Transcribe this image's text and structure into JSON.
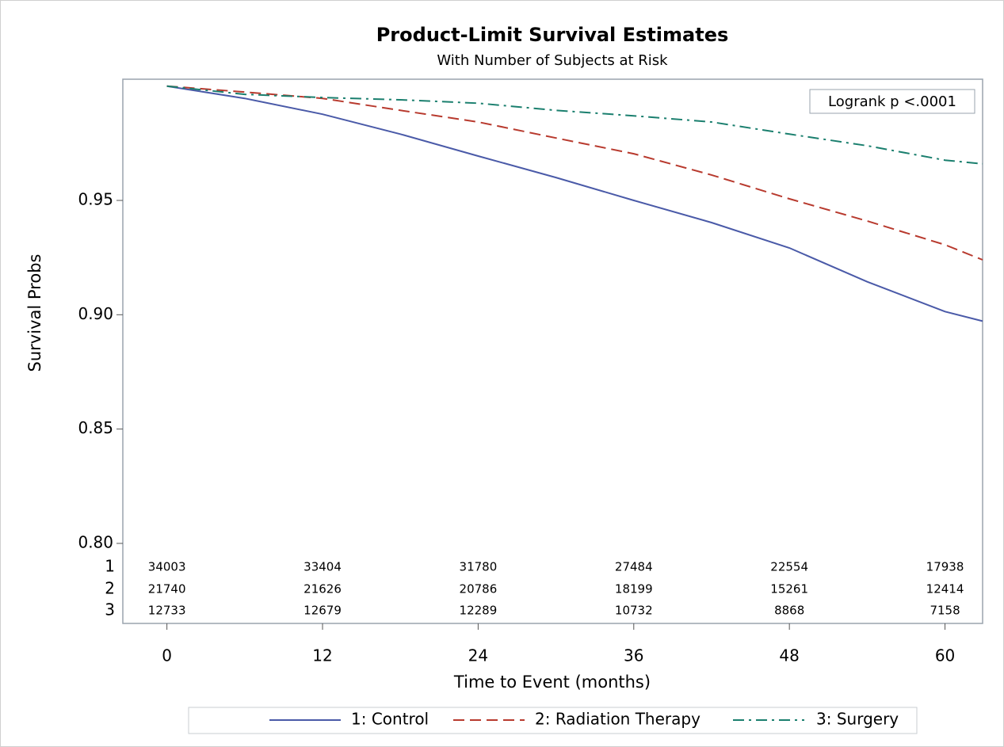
{
  "chart_data": {
    "type": "line",
    "title": "Product-Limit Survival Estimates",
    "subtitle": "With Number of Subjects at Risk",
    "x_label": "Time to Event (months)",
    "y_label": "Survival Probs",
    "annotation": "Logrank p <.0001",
    "x": [
      0,
      6,
      12,
      18,
      24,
      30,
      36,
      42,
      48,
      54,
      60,
      62.9
    ],
    "series": [
      {
        "name": "1: Control",
        "color": "#4a5aa8",
        "dash": "solid",
        "values": [
          1.0,
          0.9946,
          0.9877,
          0.979,
          0.9694,
          0.96,
          0.95,
          0.9403,
          0.9292,
          0.9144,
          0.9014,
          0.8972
        ]
      },
      {
        "name": "2: Radiation Therapy",
        "color": "#b83a2e",
        "dash": "dashed",
        "values": [
          1.0,
          0.9974,
          0.9946,
          0.9894,
          0.9843,
          0.9773,
          0.9704,
          0.9611,
          0.9507,
          0.941,
          0.9306,
          0.924
        ]
      },
      {
        "name": "3: Surgery",
        "color": "#1a7f6e",
        "dash": "dashdot",
        "values": [
          1.0,
          0.9964,
          0.995,
          0.994,
          0.9925,
          0.9894,
          0.987,
          0.9843,
          0.979,
          0.9739,
          0.9676,
          0.966
        ]
      }
    ],
    "xlim": [
      -3.4,
      62.9
    ],
    "xticks": [
      0,
      12,
      24,
      36,
      48,
      60
    ],
    "ylim": [
      0.765,
      1.003
    ],
    "yticks": [
      {
        "value": 0.8,
        "label": "0.80"
      },
      0.85,
      {
        "value": 0.9,
        "label": "0.90"
      },
      0.95
    ],
    "grid": false,
    "at_risk": {
      "groups": [
        "1",
        "2",
        "3"
      ],
      "rows": [
        [
          "34003",
          "33404",
          "31780",
          "27484",
          "22554",
          "17938"
        ],
        [
          "21740",
          "21626",
          "20786",
          "18199",
          "15261",
          "12414"
        ],
        [
          "12733",
          "12679",
          "12289",
          "10732",
          "8868",
          "7158"
        ]
      ]
    }
  }
}
